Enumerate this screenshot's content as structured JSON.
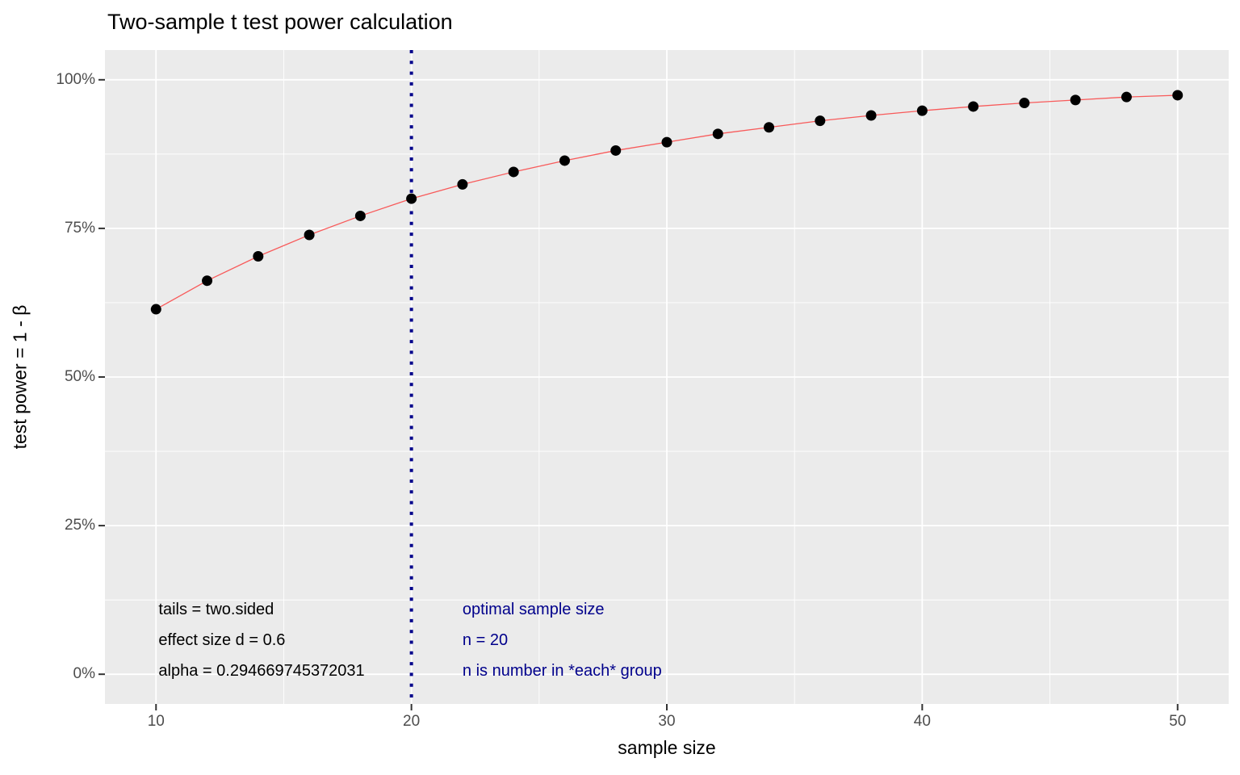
{
  "chart_data": {
    "type": "line",
    "title": "Two-sample t test power calculation",
    "xlabel": "sample size",
    "ylabel": "test power = 1 - β",
    "x": [
      10,
      12,
      14,
      16,
      18,
      20,
      22,
      24,
      26,
      28,
      30,
      32,
      34,
      36,
      38,
      40,
      42,
      44,
      46,
      48,
      50
    ],
    "y_pct": [
      61.4,
      66.2,
      70.3,
      73.9,
      77.1,
      80.0,
      82.4,
      84.5,
      86.4,
      88.1,
      89.5,
      90.9,
      92.0,
      93.1,
      94.0,
      94.8,
      95.5,
      96.1,
      96.6,
      97.1,
      97.4
    ],
    "xlim": [
      10,
      50
    ],
    "ylim_pct": [
      0,
      100
    ],
    "expand_frac": 0.05,
    "x_ticks": {
      "values": [
        10,
        20,
        30,
        40,
        50
      ],
      "labels": [
        "10",
        "20",
        "30",
        "40",
        "50"
      ],
      "minor": [
        15,
        25,
        35,
        45
      ]
    },
    "y_ticks": {
      "values_pct": [
        0,
        25,
        50,
        75,
        100
      ],
      "labels": [
        "0%",
        "25%",
        "50%",
        "75%",
        "100%"
      ],
      "minor_pct": [
        12.5,
        37.5,
        62.5,
        87.5
      ]
    },
    "vline": {
      "x": 20,
      "style": "dotted",
      "color": "#00008B"
    },
    "colors": {
      "curve": "#F85A5A",
      "points": "#000000",
      "panel_bg": "#EBEBEB",
      "grid": "#FFFFFF",
      "tick_label": "#4D4D4D",
      "tick_mark": "#333333",
      "annotation_black": "#000000",
      "annotation_blue": "#00008B"
    },
    "annotations": [
      {
        "color": "#000000",
        "x": 10.1,
        "lines": [
          {
            "text": "tails = two.sided",
            "y_pct": 10.9
          },
          {
            "text": "effect size d = 0.6",
            "y_pct": 5.7
          },
          {
            "text": "alpha = 0.294669745372031",
            "y_pct": 0.55
          }
        ]
      },
      {
        "color": "#00008B",
        "x": 22.0,
        "lines": [
          {
            "text": "optimal sample size",
            "y_pct": 10.9
          },
          {
            "text": "n = 20",
            "y_pct": 5.7
          },
          {
            "text": "n is number in *each* group",
            "y_pct": 0.55
          }
        ]
      }
    ]
  }
}
